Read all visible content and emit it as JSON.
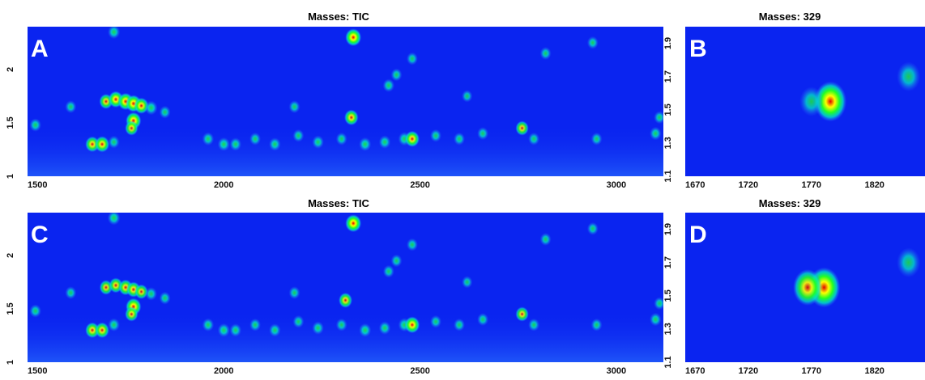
{
  "chart_data": [
    {
      "type": "heatmap",
      "panel": "A",
      "title": "Masses:  TIC",
      "xlim": [
        1500,
        3120
      ],
      "ylim": [
        1,
        2.4
      ],
      "xticks": [
        "1500",
        "2000",
        "2500",
        "3000"
      ],
      "yticks": [
        "1",
        "1.5",
        "2"
      ],
      "peaks": [
        {
          "x": 1700,
          "y": 1.7,
          "i": 0.75
        },
        {
          "x": 1725,
          "y": 1.72,
          "i": 0.9
        },
        {
          "x": 1750,
          "y": 1.7,
          "i": 0.95
        },
        {
          "x": 1770,
          "y": 1.68,
          "i": 0.95
        },
        {
          "x": 1790,
          "y": 1.66,
          "i": 0.85
        },
        {
          "x": 1815,
          "y": 1.64,
          "i": 0.65
        },
        {
          "x": 1770,
          "y": 1.52,
          "i": 0.95
        },
        {
          "x": 1765,
          "y": 1.45,
          "i": 0.7
        },
        {
          "x": 1720,
          "y": 2.35,
          "i": 0.6
        },
        {
          "x": 2330,
          "y": 2.3,
          "i": 1.0
        },
        {
          "x": 2325,
          "y": 1.55,
          "i": 0.8
        },
        {
          "x": 1665,
          "y": 1.3,
          "i": 0.8
        },
        {
          "x": 1690,
          "y": 1.3,
          "i": 0.85
        },
        {
          "x": 1520,
          "y": 1.48,
          "i": 0.55
        },
        {
          "x": 1610,
          "y": 1.65,
          "i": 0.5
        },
        {
          "x": 1720,
          "y": 1.32,
          "i": 0.5
        },
        {
          "x": 1960,
          "y": 1.35,
          "i": 0.55
        },
        {
          "x": 2000,
          "y": 1.3,
          "i": 0.6
        },
        {
          "x": 2030,
          "y": 1.3,
          "i": 0.55
        },
        {
          "x": 2080,
          "y": 1.35,
          "i": 0.5
        },
        {
          "x": 2130,
          "y": 1.3,
          "i": 0.55
        },
        {
          "x": 2190,
          "y": 1.38,
          "i": 0.5
        },
        {
          "x": 2240,
          "y": 1.32,
          "i": 0.55
        },
        {
          "x": 2300,
          "y": 1.35,
          "i": 0.5
        },
        {
          "x": 2360,
          "y": 1.3,
          "i": 0.6
        },
        {
          "x": 2410,
          "y": 1.32,
          "i": 0.55
        },
        {
          "x": 2460,
          "y": 1.35,
          "i": 0.6
        },
        {
          "x": 2480,
          "y": 1.35,
          "i": 0.85
        },
        {
          "x": 2540,
          "y": 1.38,
          "i": 0.5
        },
        {
          "x": 2600,
          "y": 1.35,
          "i": 0.5
        },
        {
          "x": 2660,
          "y": 1.4,
          "i": 0.5
        },
        {
          "x": 2760,
          "y": 1.45,
          "i": 0.7
        },
        {
          "x": 2790,
          "y": 1.35,
          "i": 0.5
        },
        {
          "x": 2950,
          "y": 1.35,
          "i": 0.5
        },
        {
          "x": 3100,
          "y": 1.4,
          "i": 0.55
        },
        {
          "x": 3110,
          "y": 1.55,
          "i": 0.5
        },
        {
          "x": 2420,
          "y": 1.85,
          "i": 0.55
        },
        {
          "x": 2440,
          "y": 1.95,
          "i": 0.5
        },
        {
          "x": 2480,
          "y": 2.1,
          "i": 0.5
        },
        {
          "x": 2180,
          "y": 1.65,
          "i": 0.5
        },
        {
          "x": 2820,
          "y": 2.15,
          "i": 0.5
        },
        {
          "x": 2940,
          "y": 2.25,
          "i": 0.5
        },
        {
          "x": 2620,
          "y": 1.75,
          "i": 0.45
        },
        {
          "x": 1850,
          "y": 1.6,
          "i": 0.5
        }
      ]
    },
    {
      "type": "heatmap",
      "panel": "B",
      "title": "Masses:  329",
      "xlim": [
        1670,
        1860
      ],
      "ylim": [
        1.1,
        2.0
      ],
      "xticks": [
        "1670",
        "1720",
        "1770",
        "1820"
      ],
      "yticks": [
        "1.1",
        "1.3",
        "1.5",
        "1.7",
        "1.9"
      ],
      "peaks": [
        {
          "x": 1785,
          "y": 1.55,
          "i": 1.0
        },
        {
          "x": 1770,
          "y": 1.55,
          "i": 0.45
        },
        {
          "x": 1847,
          "y": 1.7,
          "i": 0.45
        }
      ]
    },
    {
      "type": "heatmap",
      "panel": "C",
      "title": "Masses:  TIC",
      "xlim": [
        1500,
        3120
      ],
      "ylim": [
        1,
        2.4
      ],
      "xticks": [
        "1500",
        "2000",
        "2500",
        "3000"
      ],
      "yticks": [
        "1",
        "1.5",
        "2"
      ],
      "peaks": [
        {
          "x": 1700,
          "y": 1.7,
          "i": 0.7
        },
        {
          "x": 1725,
          "y": 1.72,
          "i": 0.75
        },
        {
          "x": 1750,
          "y": 1.7,
          "i": 0.8
        },
        {
          "x": 1770,
          "y": 1.68,
          "i": 0.8
        },
        {
          "x": 1790,
          "y": 1.66,
          "i": 0.7
        },
        {
          "x": 1815,
          "y": 1.64,
          "i": 0.55
        },
        {
          "x": 1770,
          "y": 1.52,
          "i": 0.95
        },
        {
          "x": 1765,
          "y": 1.45,
          "i": 0.7
        },
        {
          "x": 1720,
          "y": 2.35,
          "i": 0.65
        },
        {
          "x": 2330,
          "y": 2.3,
          "i": 1.0
        },
        {
          "x": 2310,
          "y": 1.58,
          "i": 0.75
        },
        {
          "x": 1665,
          "y": 1.3,
          "i": 0.8
        },
        {
          "x": 1690,
          "y": 1.3,
          "i": 0.8
        },
        {
          "x": 1520,
          "y": 1.48,
          "i": 0.55
        },
        {
          "x": 1610,
          "y": 1.65,
          "i": 0.5
        },
        {
          "x": 1720,
          "y": 1.35,
          "i": 0.55
        },
        {
          "x": 1960,
          "y": 1.35,
          "i": 0.55
        },
        {
          "x": 2000,
          "y": 1.3,
          "i": 0.6
        },
        {
          "x": 2030,
          "y": 1.3,
          "i": 0.55
        },
        {
          "x": 2080,
          "y": 1.35,
          "i": 0.5
        },
        {
          "x": 2130,
          "y": 1.3,
          "i": 0.55
        },
        {
          "x": 2190,
          "y": 1.38,
          "i": 0.5
        },
        {
          "x": 2240,
          "y": 1.32,
          "i": 0.55
        },
        {
          "x": 2300,
          "y": 1.35,
          "i": 0.5
        },
        {
          "x": 2360,
          "y": 1.3,
          "i": 0.6
        },
        {
          "x": 2410,
          "y": 1.32,
          "i": 0.55
        },
        {
          "x": 2460,
          "y": 1.35,
          "i": 0.6
        },
        {
          "x": 2480,
          "y": 1.35,
          "i": 0.9
        },
        {
          "x": 2540,
          "y": 1.38,
          "i": 0.5
        },
        {
          "x": 2600,
          "y": 1.35,
          "i": 0.5
        },
        {
          "x": 2660,
          "y": 1.4,
          "i": 0.5
        },
        {
          "x": 2760,
          "y": 1.45,
          "i": 0.7
        },
        {
          "x": 2790,
          "y": 1.35,
          "i": 0.5
        },
        {
          "x": 2950,
          "y": 1.35,
          "i": 0.5
        },
        {
          "x": 3100,
          "y": 1.4,
          "i": 0.55
        },
        {
          "x": 3110,
          "y": 1.55,
          "i": 0.5
        },
        {
          "x": 2420,
          "y": 1.85,
          "i": 0.5
        },
        {
          "x": 2440,
          "y": 1.95,
          "i": 0.5
        },
        {
          "x": 2480,
          "y": 2.1,
          "i": 0.5
        },
        {
          "x": 2180,
          "y": 1.65,
          "i": 0.5
        },
        {
          "x": 2820,
          "y": 2.15,
          "i": 0.5
        },
        {
          "x": 2940,
          "y": 2.25,
          "i": 0.5
        },
        {
          "x": 2620,
          "y": 1.75,
          "i": 0.45
        },
        {
          "x": 1850,
          "y": 1.6,
          "i": 0.5
        }
      ]
    },
    {
      "type": "heatmap",
      "panel": "D",
      "title": "Masses:  329",
      "xlim": [
        1670,
        1860
      ],
      "ylim": [
        1.1,
        2.0
      ],
      "xticks": [
        "1670",
        "1720",
        "1770",
        "1820"
      ],
      "yticks": [
        "1.1",
        "1.3",
        "1.5",
        "1.7",
        "1.9"
      ],
      "peaks": [
        {
          "x": 1780,
          "y": 1.55,
          "i": 1.0
        },
        {
          "x": 1767,
          "y": 1.55,
          "i": 0.8
        },
        {
          "x": 1847,
          "y": 1.7,
          "i": 0.45
        }
      ]
    }
  ],
  "colors": {
    "background": "#0a24f0",
    "low": "#2f6bff",
    "mid": "#00e6c8",
    "high": "#22ff22",
    "peak": "#ffff00",
    "max": "#e00000"
  }
}
